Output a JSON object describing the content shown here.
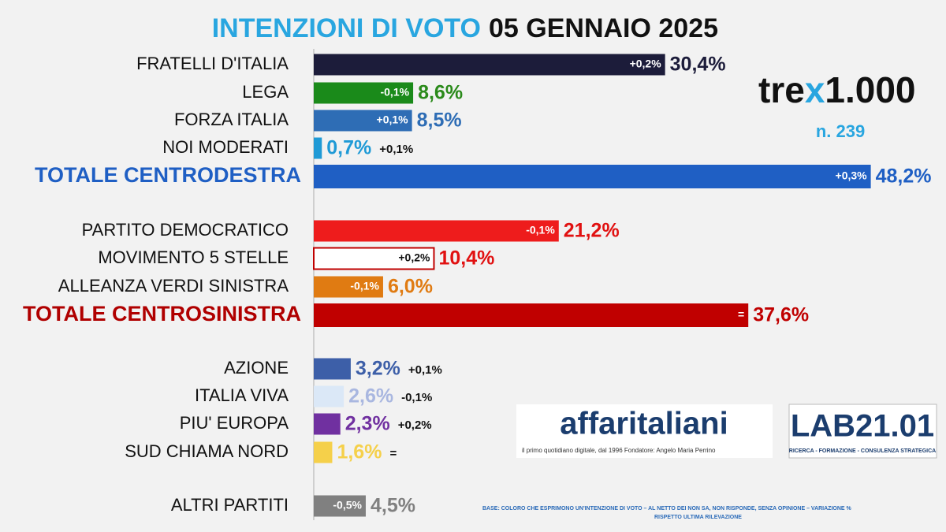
{
  "chart_data": {
    "type": "bar",
    "orientation": "horizontal",
    "title": "INTENZIONI DI VOTO",
    "subtitle": "05 GENNAIO 2025",
    "categories": [
      "FRATELLI D'ITALIA",
      "LEGA",
      "FORZA ITALIA",
      "NOI MODERATI",
      "TOTALE CENTRODESTRA",
      "PARTITO DEMOCRATICO",
      "MOVIMENTO 5 STELLE",
      "ALLEANZA VERDI SINISTRA",
      "TOTALE CENTROSINISTRA",
      "AZIONE",
      "ITALIA VIVA",
      "PIU' EUROPA",
      "SUD CHIAMA NORD",
      "ALTRI PARTITI"
    ],
    "values": [
      30.4,
      8.6,
      8.5,
      0.7,
      48.2,
      21.2,
      10.4,
      6.0,
      37.6,
      3.2,
      2.6,
      2.3,
      1.6,
      4.5
    ],
    "value_labels": [
      "30,4%",
      "8,6%",
      "8,5%",
      "0,7%",
      "48,2%",
      "21,2%",
      "10,4%",
      "6,0%",
      "37,6%",
      "3,2%",
      "2,6%",
      "2,3%",
      "1,6%",
      "4,5%"
    ],
    "changes": [
      "+0,2%",
      "-0,1%",
      "+0,1%",
      "+0,1%",
      "+0,3%",
      "-0,1%",
      "+0,2%",
      "-0,1%",
      "=",
      "+0,1%",
      "-0,1%",
      "+0,2%",
      "=",
      "-0,5%"
    ],
    "colors": [
      "#1c1c3a",
      "#1a8a1a",
      "#2e6db5",
      "#1f9ad6",
      "#1f5fc4",
      "#ee1c1c",
      "#ffffff",
      "#e07b12",
      "#c00000",
      "#3d5fa8",
      "#dbe8f7",
      "#7030a0",
      "#f5d04a",
      "#808080"
    ],
    "label_colors": [
      "#1c1c3a",
      "#2a8a1a",
      "#2e6db5",
      "#1f9ad6",
      "#1f5fc4",
      "#e11111",
      "#e11111",
      "#e07b12",
      "#c00000",
      "#3d5fa8",
      "#a9b7e0",
      "#7030a0",
      "#f5d04a",
      "#808080"
    ],
    "xlim": [
      0,
      50
    ],
    "annotations": {
      "brand": "tre",
      "brand_x": "x",
      "brand_tail": "1.000",
      "sample": "n. 239",
      "publisher": "affaritaliani",
      "publisher_tagline": "il primo quotidiano digitale, dal 1996  Fondatore: Angelo Maria Perrino",
      "lab": "LAB21.01",
      "lab_tagline": "RICERCA - FORMAZIONE - CONSULENZA STRATEGICA",
      "footnote": [
        "BASE: COLORO CHE ESPRIMONO UN'INTENZIONE DI VOTO – AL NETTO DEI NON SA, NON RISPONDE, SENZA OPINIONE – VARIAZIONE %",
        "RISPETTO ULTIMA RILEVAZIONE"
      ]
    }
  }
}
